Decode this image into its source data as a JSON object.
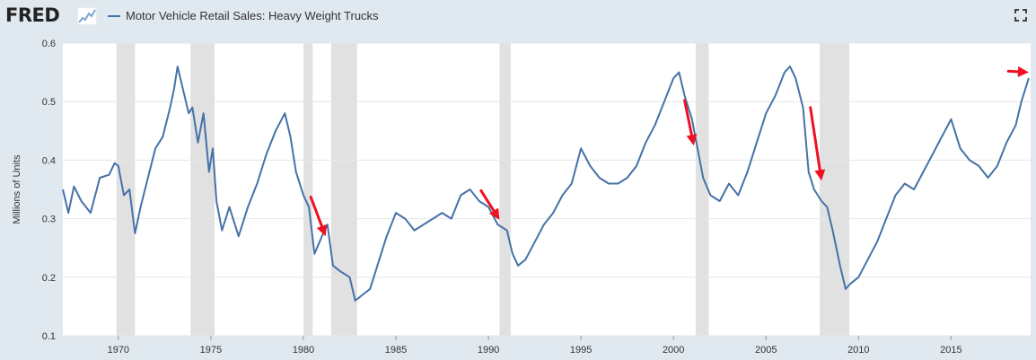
{
  "header": {
    "logo_text": "FRED",
    "logo_icon": "chart-line-icon",
    "fullscreen_icon": "fullscreen-icon"
  },
  "colors": {
    "series": "#4572a7",
    "recession": "#e1e1e1",
    "arrow": "#ee1122",
    "background": "#e1e9f0",
    "plot": "#ffffff",
    "grid": "#e6e6e6"
  },
  "chart_data": {
    "type": "line",
    "ylabel": "Millions of Units",
    "xlim": [
      1967.0,
      2019.3
    ],
    "ylim": [
      0.1,
      0.6
    ],
    "yticks": [
      0.1,
      0.2,
      0.3,
      0.4,
      0.5,
      0.6
    ],
    "yticks_labels": [
      "0.1",
      "0.2",
      "0.3",
      "0.4",
      "0.5",
      "0.6"
    ],
    "xticks": [
      1970,
      1975,
      1980,
      1985,
      1990,
      1995,
      2000,
      2005,
      2010,
      2015
    ],
    "xticks_labels": [
      "1970",
      "1975",
      "1980",
      "1985",
      "1990",
      "1995",
      "2000",
      "2005",
      "2010",
      "2015"
    ],
    "grid": true,
    "recessions": [
      [
        1969.9,
        1970.9
      ],
      [
        1973.9,
        1975.2
      ],
      [
        1980.0,
        1980.5
      ],
      [
        1981.5,
        1982.9
      ],
      [
        1990.6,
        1991.2
      ],
      [
        2001.2,
        2001.9
      ],
      [
        2007.9,
        2009.5
      ]
    ],
    "series": [
      {
        "name": "Motor Vehicle Retail Sales: Heavy Weight Trucks",
        "x": [
          1967.0,
          1967.3,
          1967.6,
          1968.0,
          1968.5,
          1969.0,
          1969.5,
          1969.8,
          1970.0,
          1970.3,
          1970.6,
          1970.9,
          1971.2,
          1971.6,
          1972.0,
          1972.4,
          1972.8,
          1973.0,
          1973.2,
          1973.5,
          1973.8,
          1974.0,
          1974.3,
          1974.6,
          1974.9,
          1975.1,
          1975.3,
          1975.6,
          1976.0,
          1976.5,
          1977.0,
          1977.5,
          1978.0,
          1978.5,
          1979.0,
          1979.3,
          1979.6,
          1980.0,
          1980.3,
          1980.6,
          1981.0,
          1981.3,
          1981.6,
          1982.0,
          1982.5,
          1982.8,
          1983.2,
          1983.6,
          1984.0,
          1984.5,
          1985.0,
          1985.5,
          1986.0,
          1986.5,
          1987.0,
          1987.5,
          1988.0,
          1988.5,
          1989.0,
          1989.5,
          1990.0,
          1990.5,
          1991.0,
          1991.3,
          1991.6,
          1992.0,
          1992.5,
          1993.0,
          1993.5,
          1994.0,
          1994.5,
          1995.0,
          1995.5,
          1996.0,
          1996.5,
          1997.0,
          1997.5,
          1998.0,
          1998.5,
          1999.0,
          1999.5,
          2000.0,
          2000.3,
          2000.6,
          2001.0,
          2001.3,
          2001.6,
          2002.0,
          2002.5,
          2003.0,
          2003.5,
          2004.0,
          2004.5,
          2005.0,
          2005.5,
          2006.0,
          2006.3,
          2006.6,
          2007.0,
          2007.3,
          2007.6,
          2008.0,
          2008.3,
          2008.6,
          2009.0,
          2009.3,
          2009.6,
          2010.0,
          2010.5,
          2011.0,
          2011.5,
          2012.0,
          2012.5,
          2013.0,
          2013.5,
          2014.0,
          2014.5,
          2015.0,
          2015.5,
          2016.0,
          2016.5,
          2017.0,
          2017.5,
          2018.0,
          2018.5,
          2018.8,
          2019.0,
          2019.2
        ],
        "values": [
          0.35,
          0.31,
          0.355,
          0.33,
          0.31,
          0.37,
          0.375,
          0.395,
          0.39,
          0.34,
          0.35,
          0.275,
          0.32,
          0.37,
          0.42,
          0.44,
          0.49,
          0.52,
          0.56,
          0.52,
          0.48,
          0.49,
          0.43,
          0.48,
          0.38,
          0.42,
          0.33,
          0.28,
          0.32,
          0.27,
          0.32,
          0.36,
          0.41,
          0.45,
          0.48,
          0.44,
          0.38,
          0.34,
          0.32,
          0.24,
          0.27,
          0.29,
          0.22,
          0.21,
          0.2,
          0.16,
          0.17,
          0.18,
          0.22,
          0.27,
          0.31,
          0.3,
          0.28,
          0.29,
          0.3,
          0.31,
          0.3,
          0.34,
          0.35,
          0.33,
          0.32,
          0.29,
          0.28,
          0.24,
          0.22,
          0.23,
          0.26,
          0.29,
          0.31,
          0.34,
          0.36,
          0.42,
          0.39,
          0.37,
          0.36,
          0.36,
          0.37,
          0.39,
          0.43,
          0.46,
          0.5,
          0.54,
          0.55,
          0.51,
          0.47,
          0.42,
          0.37,
          0.34,
          0.33,
          0.36,
          0.34,
          0.38,
          0.43,
          0.48,
          0.51,
          0.55,
          0.56,
          0.54,
          0.49,
          0.38,
          0.35,
          0.33,
          0.32,
          0.28,
          0.22,
          0.18,
          0.19,
          0.2,
          0.23,
          0.26,
          0.3,
          0.34,
          0.36,
          0.35,
          0.38,
          0.41,
          0.44,
          0.47,
          0.42,
          0.4,
          0.39,
          0.37,
          0.39,
          0.43,
          0.46,
          0.5,
          0.52,
          0.54
        ]
      }
    ],
    "annotations": [
      {
        "type": "arrow",
        "from": [
          1980.4,
          0.337
        ],
        "to": [
          1981.2,
          0.27
        ]
      },
      {
        "type": "arrow",
        "from": [
          1989.6,
          0.348
        ],
        "to": [
          1990.6,
          0.298
        ]
      },
      {
        "type": "arrow",
        "from": [
          2000.6,
          0.502
        ],
        "to": [
          2001.1,
          0.425
        ]
      },
      {
        "type": "arrow",
        "from": [
          2007.4,
          0.49
        ],
        "to": [
          2008.0,
          0.365
        ]
      },
      {
        "type": "arrow",
        "from": [
          2018.1,
          0.552
        ],
        "to": [
          2019.2,
          0.55
        ]
      }
    ]
  }
}
